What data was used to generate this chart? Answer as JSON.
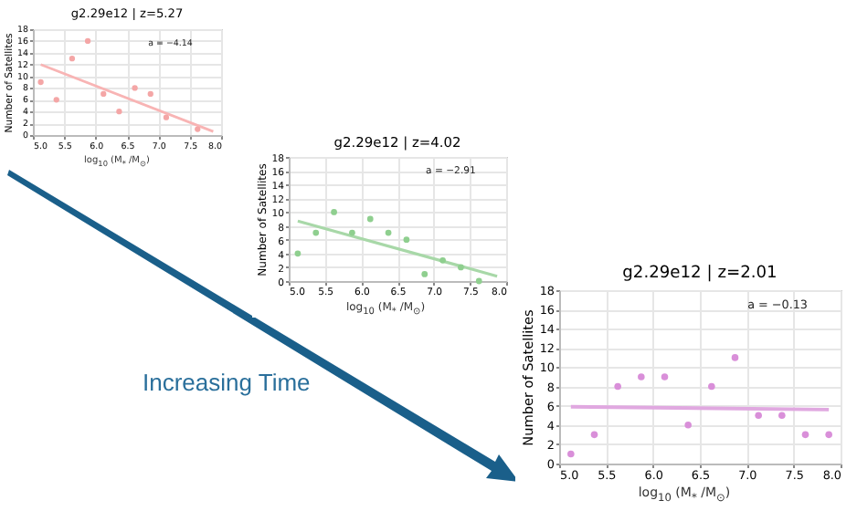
{
  "chart_data": [
    {
      "type": "scatter",
      "title": "g2.29e12 | z=5.27",
      "xlabel": "log$_{10}$ (M$_{*}$ /M$_{⊙}$)",
      "ylabel": "Number of Satellites",
      "annotations": [
        "a = −4.14"
      ],
      "xlim": [
        5.0,
        8.0
      ],
      "xticks": [
        {
          "value": 5,
          "label": "5.0"
        },
        5.5,
        {
          "value": 6,
          "label": "6.0"
        },
        6.5,
        {
          "value": 7,
          "label": "7.0"
        },
        7.5,
        {
          "value": 8,
          "label": "8.0"
        }
      ],
      "ylim": [
        0,
        18
      ],
      "yticks": [
        0,
        2,
        4,
        6,
        8,
        10,
        12,
        14,
        16,
        18
      ],
      "grid": true,
      "series": [
        {
          "type": "scatter",
          "marker": "circle",
          "color": "#f4a6a6",
          "x": [
            5.125,
            5.375,
            5.625,
            5.875,
            6.125,
            6.375,
            6.625,
            6.875,
            7.125,
            7.625
          ],
          "values": [
            9,
            6,
            13,
            16,
            7,
            4,
            8,
            7,
            3,
            1
          ]
        },
        {
          "type": "line",
          "color": "#f8b4b4",
          "x": [
            5.125,
            7.875
          ],
          "values": [
            12,
            0.6
          ]
        }
      ]
    },
    {
      "type": "scatter",
      "title": "g2.29e12 | z=4.02",
      "xlabel": "log$_{10}$ (M$_{*}$ /M$_{⊙}$)",
      "ylabel": "Number of Satellites",
      "annotations": [
        "a = −2.91",
        "Increasing Time"
      ],
      "xlim": [
        5.0,
        8.0
      ],
      "xticks": [
        {
          "value": 5,
          "label": "5.0"
        },
        5.5,
        {
          "value": 6,
          "label": "6.0"
        },
        6.5,
        {
          "value": 7,
          "label": "7.0"
        },
        7.5,
        {
          "value": 8,
          "label": "8.0"
        }
      ],
      "ylim": [
        0,
        18
      ],
      "yticks": [
        0,
        2,
        4,
        6,
        8,
        10,
        12,
        14,
        16,
        18
      ],
      "grid": true,
      "series": [
        {
          "type": "scatter",
          "marker": "circle",
          "color": "#8fcf8f",
          "x": [
            5.125,
            5.375,
            5.625,
            5.875,
            6.125,
            6.375,
            6.625,
            6.875,
            7.125,
            7.375,
            7.625
          ],
          "values": [
            4,
            7,
            10,
            7,
            9,
            7,
            6,
            1,
            3,
            2,
            0
          ]
        },
        {
          "type": "line",
          "color": "#a8d8a8",
          "x": [
            5.125,
            7.875
          ],
          "values": [
            8.7,
            0.7
          ]
        }
      ]
    },
    {
      "type": "scatter",
      "title": "g2.29e12 | z=2.01",
      "xlabel": "log$_{10}$ (M$_{*}$ /M$_{⊙}$)",
      "ylabel": "Number of Satellites",
      "annotations": [
        "a = −0.13"
      ],
      "xlim": [
        5.0,
        8.0
      ],
      "xticks": [
        {
          "value": 5,
          "label": "5.0"
        },
        5.5,
        {
          "value": 6,
          "label": "6.0"
        },
        6.5,
        {
          "value": 7,
          "label": "7.0"
        },
        7.5,
        {
          "value": 8,
          "label": "8.0"
        }
      ],
      "ylim": [
        0,
        18
      ],
      "yticks": [
        0,
        2,
        4,
        6,
        8,
        10,
        12,
        14,
        16,
        18
      ],
      "grid": true,
      "series": [
        {
          "type": "scatter",
          "marker": "circle",
          "color": "#d98fd9",
          "x": [
            5.125,
            5.375,
            5.625,
            5.875,
            6.125,
            6.375,
            6.625,
            6.875,
            7.125,
            7.375,
            7.625,
            7.875
          ],
          "values": [
            1,
            3,
            8,
            9,
            9,
            4,
            8,
            11,
            5,
            5,
            3,
            3
          ]
        },
        {
          "type": "line",
          "color": "#e0a8e0",
          "x": [
            5.125,
            7.875
          ],
          "values": [
            5.9,
            5.6
          ]
        }
      ]
    }
  ]
}
